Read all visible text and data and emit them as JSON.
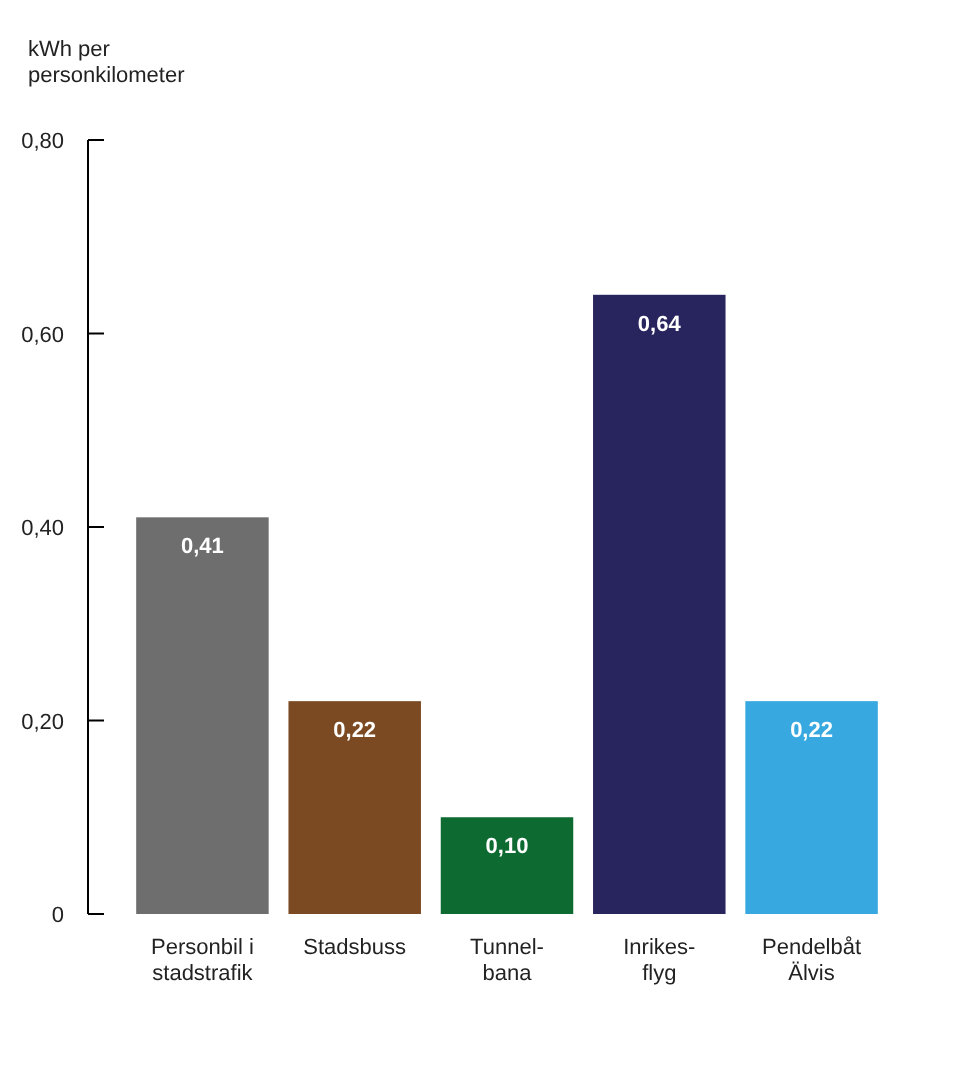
{
  "chart_data": {
    "type": "bar",
    "ylabel": "kWh per\npersonkilometer",
    "categories": [
      "Personbil i\nstadstrafik",
      "Stadsbuss",
      "Tunnel-\nbana",
      "Inrikes-\nflyg",
      "Pendelbåt\nÄlvis"
    ],
    "values": [
      0.41,
      0.22,
      0.1,
      0.64,
      0.22
    ],
    "colors": [
      "#6e6e6e",
      "#7b4a22",
      "#0d6b32",
      "#27245e",
      "#38a9e0"
    ],
    "value_labels": [
      "0,41",
      "0,22",
      "0,10",
      "0,64",
      "0,22"
    ],
    "ylim": [
      0,
      0.8
    ],
    "yticks": [
      {
        "value": 0,
        "label": "0"
      },
      {
        "value": 0.2,
        "label": "0,20"
      },
      {
        "value": 0.4,
        "label": "0,40"
      },
      {
        "value": 0.6,
        "label": "0,60"
      },
      {
        "value": 0.8,
        "label": "0,80"
      }
    ],
    "grid": false
  }
}
